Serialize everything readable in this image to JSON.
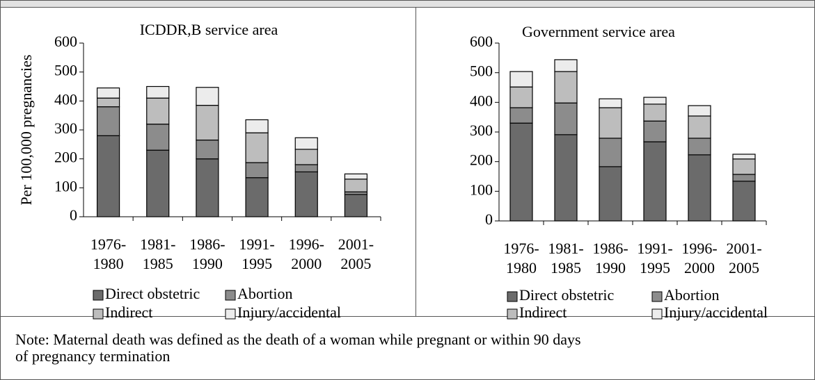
{
  "chart_data": [
    {
      "type": "bar",
      "stacked": true,
      "title": "ICDDR,B service area",
      "y_label": "Per 100,000 pregnancies",
      "categories": [
        "1976-1980",
        "1981-1985",
        "1986-1990",
        "1991-1995",
        "1996-2000",
        "2001-2005"
      ],
      "series": [
        {
          "name": "Direct obstetric",
          "color": "#6b6b6b",
          "values": [
            280,
            230,
            200,
            135,
            155,
            77
          ]
        },
        {
          "name": "Abortion",
          "color": "#8c8c8c",
          "values": [
            100,
            90,
            65,
            52,
            25,
            9
          ]
        },
        {
          "name": "Indirect",
          "color": "#bdbdbd",
          "values": [
            30,
            90,
            120,
            103,
            53,
            44
          ]
        },
        {
          "name": "Injury/accidental",
          "color": "#ececec",
          "values": [
            35,
            40,
            62,
            45,
            40,
            18
          ]
        }
      ],
      "ylim": [
        0,
        600
      ],
      "yticks": [
        0,
        100,
        200,
        300,
        400,
        500,
        600
      ]
    },
    {
      "type": "bar",
      "stacked": true,
      "title": "Government service area",
      "categories": [
        "1976-1980",
        "1981-1985",
        "1986-1990",
        "1991-1995",
        "1996-2000",
        "2001-2005"
      ],
      "series": [
        {
          "name": "Direct obstetric",
          "color": "#6b6b6b",
          "values": [
            330,
            291,
            183,
            267,
            223,
            134
          ]
        },
        {
          "name": "Abortion",
          "color": "#8c8c8c",
          "values": [
            52,
            107,
            96,
            70,
            56,
            23
          ]
        },
        {
          "name": "Indirect",
          "color": "#bdbdbd",
          "values": [
            70,
            106,
            103,
            57,
            75,
            52
          ]
        },
        {
          "name": "Injury/accidental",
          "color": "#ececec",
          "values": [
            52,
            40,
            30,
            23,
            35,
            16
          ]
        }
      ],
      "ylim": [
        0,
        600
      ],
      "yticks": [
        0,
        100,
        200,
        300,
        400,
        500,
        600
      ]
    }
  ],
  "note": {
    "lines": [
      "Note: Maternal death was defined as the death of a woman while pregnant or within 90 days",
      "of pregnancy termination"
    ]
  }
}
